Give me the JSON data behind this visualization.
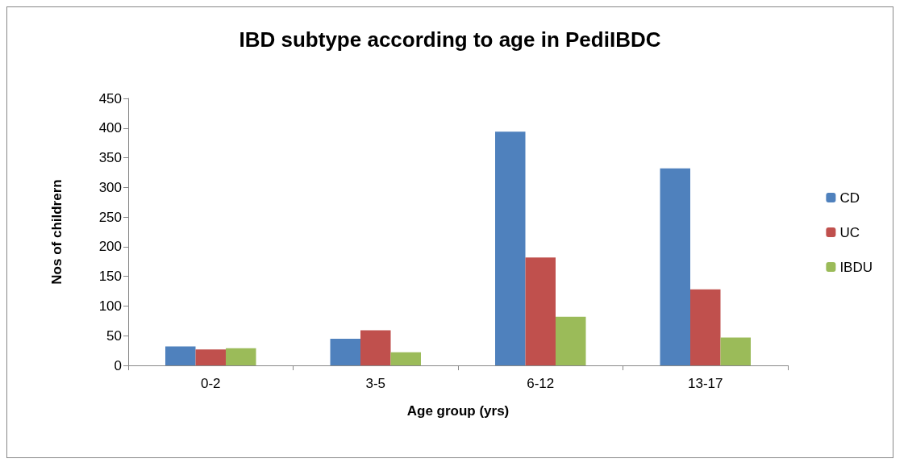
{
  "chart_data": {
    "type": "bar",
    "title": "IBD subtype according to age in PediIBDC",
    "xlabel": "Age group (yrs)",
    "ylabel": "Nos of childrern",
    "categories": [
      "0-2",
      "3-5",
      "6-12",
      "13-17"
    ],
    "series": [
      {
        "name": "CD",
        "color": "#4f81bd",
        "values": [
          32,
          45,
          394,
          332
        ]
      },
      {
        "name": "UC",
        "color": "#c0504d",
        "values": [
          27,
          59,
          182,
          128
        ]
      },
      {
        "name": "IBDU",
        "color": "#9bbb59",
        "values": [
          29,
          22,
          82,
          47
        ]
      }
    ],
    "ylim": [
      0,
      450
    ],
    "yticks": [
      0,
      50,
      100,
      150,
      200,
      250,
      300,
      350,
      400,
      450
    ],
    "grid": false,
    "legend": "right"
  }
}
